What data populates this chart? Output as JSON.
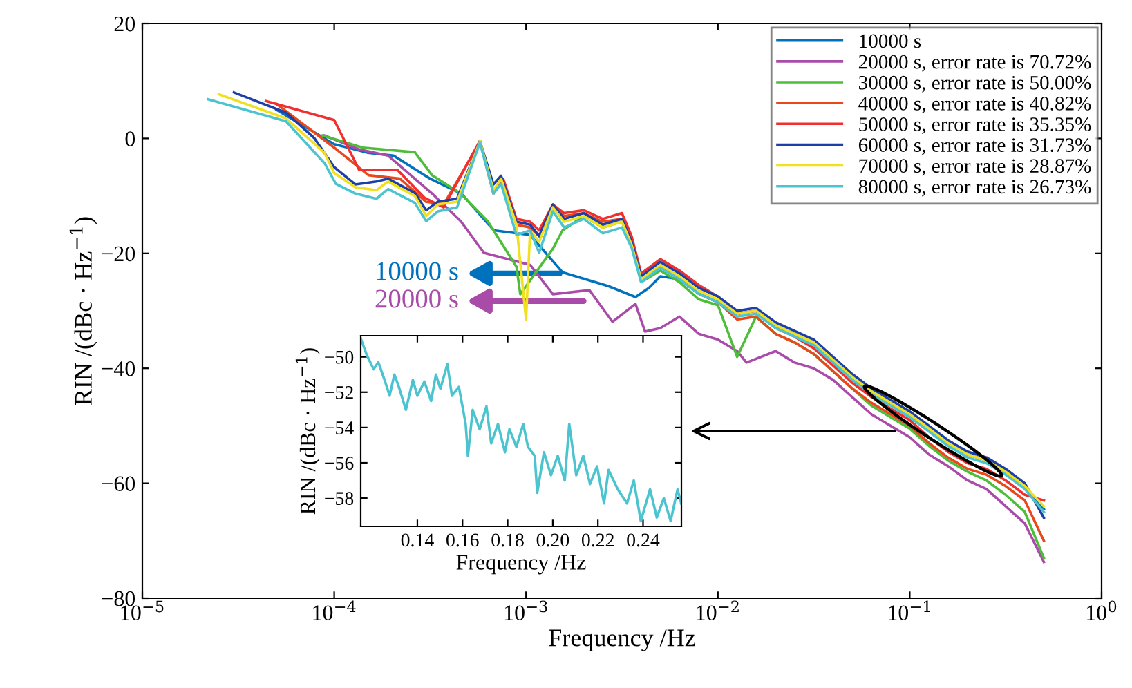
{
  "chart_data": [
    {
      "type": "line",
      "xlabel": "Frequency /Hz",
      "ylabel": "RIN /(dBc · Hz$^{−1}$)",
      "log": "x",
      "xlim": [
        1e-05,
        1
      ],
      "ylim": [
        -80,
        20
      ],
      "xticks": [
        {
          "value": 1e-05,
          "label": "10$^{−5}$"
        },
        {
          "value": 0.0001,
          "label": "10$^{−4}$"
        },
        {
          "value": 0.001,
          "label": "10$^{−3}$"
        },
        {
          "value": 0.01,
          "label": "10$^{−2}$"
        },
        {
          "value": 0.1,
          "label": "10$^{−1}$"
        },
        {
          "value": 1,
          "label": "10$^{0}$"
        }
      ],
      "yticks": [
        -80,
        -60,
        -40,
        -20,
        0,
        20
      ],
      "legend": "top right",
      "annotations": [
        "10000 s",
        "20000 s"
      ],
      "series": [
        {
          "name": "10000 s",
          "color": "#0072bd",
          "x": [
            5e-05,
            0.0001,
            0.00015,
            0.000204,
            0.000316,
            0.00046,
            0.00068,
            0.00105,
            0.00155,
            0.00269,
            0.00372,
            0.00437,
            0.00501,
            0.00631,
            0.00794,
            0.01,
            0.0126,
            0.0158,
            0.02,
            0.0251,
            0.0316,
            0.0398,
            0.0501,
            0.0631,
            0.0794,
            0.1,
            0.126,
            0.158,
            0.2,
            0.251,
            0.316,
            0.398,
            0.5
          ],
          "values": [
            5,
            -1,
            -2.5,
            -3,
            -7,
            -9.6,
            -16,
            -16.8,
            -23.3,
            -25.7,
            -27.6,
            -26,
            -24,
            -24.5,
            -27,
            -28.5,
            -30.5,
            -30,
            -32.5,
            -34,
            -35.5,
            -38.5,
            -41.5,
            -44,
            -46,
            -48,
            -50.5,
            -53,
            -55,
            -56,
            -58,
            -60.5,
            -64.5
          ]
        },
        {
          "name": "20000 s, error rate is 70.72%",
          "color": "#a94ba8",
          "x": [
            8.9e-05,
            0.000135,
            0.000191,
            0.000324,
            0.000457,
            0.000603,
            0.00105,
            0.00138,
            0.00214,
            0.00282,
            0.00372,
            0.00417,
            0.00501,
            0.00631,
            0.00794,
            0.01,
            0.0126,
            0.0141,
            0.02,
            0.0251,
            0.0316,
            0.0398,
            0.0501,
            0.0631,
            0.0794,
            0.1,
            0.126,
            0.158,
            0.2,
            0.251,
            0.316,
            0.398,
            0.5
          ],
          "values": [
            0.5,
            -1.9,
            -3,
            -9.6,
            -14.4,
            -19.9,
            -22,
            -27.1,
            -26.4,
            -31.9,
            -28.8,
            -33.6,
            -33,
            -31,
            -34,
            -35,
            -37,
            -39,
            -37,
            -39,
            -40,
            -42,
            -45,
            -48,
            -50,
            -52,
            -55,
            -57,
            -59.5,
            -61,
            -64,
            -67,
            -73.7
          ]
        },
        {
          "name": "30000 s, error rate is 50.00%",
          "color": "#4dbd3a",
          "x": [
            8.7e-05,
            0.000141,
            0.000263,
            0.000324,
            0.000457,
            0.000631,
            0.000891,
            0.000933,
            0.00105,
            0.00138,
            0.00155,
            0.002,
            0.00251,
            0.00316,
            0.00355,
            0.00398,
            0.00501,
            0.00631,
            0.00794,
            0.01,
            0.0126,
            0.0158,
            0.02,
            0.0251,
            0.0316,
            0.0398,
            0.0501,
            0.0631,
            0.0794,
            0.1,
            0.126,
            0.158,
            0.2,
            0.251,
            0.316,
            0.398,
            0.5
          ],
          "values": [
            0.5,
            -1.6,
            -2.4,
            -6.4,
            -9.6,
            -14.4,
            -22.3,
            -27.1,
            -24.7,
            -19.2,
            -16,
            -13.5,
            -15.5,
            -14.5,
            -18.5,
            -25,
            -23,
            -25,
            -28,
            -29,
            -38,
            -31,
            -34,
            -35.5,
            -37.5,
            -40.5,
            -43.5,
            -46.5,
            -48.5,
            -50.5,
            -53.5,
            -56,
            -58,
            -59.5,
            -62,
            -65,
            -73
          ]
        },
        {
          "name": "40000 s, error rate is 40.82%",
          "color": "#e8481c",
          "x": [
            5e-05,
            0.0001,
            0.000151,
            0.00022,
            0.0003,
            0.000372,
            0.000575,
            0.000676,
            0.00076,
            0.000891,
            0.00105,
            0.00117,
            0.00138,
            0.00158,
            0.002,
            0.00251,
            0.00316,
            0.00355,
            0.00398,
            0.00501,
            0.00631,
            0.00794,
            0.01,
            0.0126,
            0.0158,
            0.02,
            0.0251,
            0.0316,
            0.0398,
            0.0501,
            0.0631,
            0.0794,
            0.1,
            0.126,
            0.158,
            0.2,
            0.251,
            0.316,
            0.398,
            0.5
          ],
          "values": [
            6,
            -1.6,
            -6.4,
            -7,
            -11,
            -11.5,
            -0.6,
            -9,
            -7.5,
            -15,
            -15.5,
            -17,
            -12,
            -13.5,
            -13,
            -14.5,
            -14,
            -18,
            -24.5,
            -22,
            -24,
            -27,
            -28.5,
            -31.5,
            -31,
            -34,
            -35.5,
            -37.5,
            -40.5,
            -43.5,
            -46,
            -48,
            -50,
            -53,
            -55.5,
            -57.5,
            -58.5,
            -60.5,
            -63,
            -70
          ]
        },
        {
          "name": "50000 s, error rate is 35.35%",
          "color": "#f03030",
          "x": [
            4.4e-05,
            0.0001,
            0.000135,
            0.000214,
            0.000295,
            0.000372,
            0.000575,
            0.000676,
            0.00076,
            0.000891,
            0.00105,
            0.00117,
            0.00138,
            0.00158,
            0.002,
            0.00251,
            0.00316,
            0.00355,
            0.00398,
            0.00501,
            0.00631,
            0.00794,
            0.01,
            0.0126,
            0.0158,
            0.02,
            0.0251,
            0.0316,
            0.0398,
            0.0501,
            0.0631,
            0.0794,
            0.1,
            0.126,
            0.158,
            0.2,
            0.251,
            0.316,
            0.398,
            0.5
          ],
          "values": [
            6.5,
            3.2,
            -5.5,
            -5.5,
            -10.3,
            -12,
            -0.4,
            -9.6,
            -7,
            -14,
            -14.5,
            -16,
            -11.5,
            -13,
            -12.5,
            -14,
            -13,
            -17,
            -23.5,
            -21,
            -23,
            -25.5,
            -27.5,
            -30.5,
            -30,
            -33,
            -34.5,
            -36.5,
            -39.5,
            -42.5,
            -45,
            -47,
            -49,
            -52,
            -54.5,
            -56.5,
            -57.5,
            -59.5,
            -62,
            -63
          ]
        },
        {
          "name": "60000 s, error rate is 31.73%",
          "color": "#1d3fa8",
          "x": [
            3e-05,
            5.6e-05,
            7.9e-05,
            0.0001,
            0.000129,
            0.000166,
            0.000191,
            0.000263,
            0.000302,
            0.000347,
            0.000437,
            0.000575,
            0.000676,
            0.000741,
            0.000891,
            0.00105,
            0.00117,
            0.00138,
            0.00158,
            0.002,
            0.00251,
            0.00316,
            0.00355,
            0.00398,
            0.00501,
            0.00631,
            0.00794,
            0.01,
            0.0126,
            0.0158,
            0.02,
            0.0251,
            0.0316,
            0.0398,
            0.0501,
            0.0631,
            0.0794,
            0.1,
            0.126,
            0.158,
            0.2,
            0.251,
            0.316,
            0.398,
            0.5
          ],
          "values": [
            8,
            4.5,
            0,
            -5,
            -8,
            -7.5,
            -7,
            -9.5,
            -12.5,
            -11,
            -10.5,
            -0.5,
            -8,
            -6.5,
            -14.5,
            -15,
            -17,
            -11.5,
            -14,
            -13,
            -15,
            -14,
            -18,
            -24,
            -21.5,
            -23.5,
            -26,
            -27.5,
            -30,
            -29.5,
            -32,
            -33.5,
            -35,
            -38,
            -41,
            -43.5,
            -45.5,
            -47.5,
            -50,
            -52.5,
            -54.5,
            -55.5,
            -57.5,
            -60,
            -66
          ]
        },
        {
          "name": "70000 s, error rate is 28.87%",
          "color": "#f0e020",
          "x": [
            2.5e-05,
            5.6e-05,
            8.9e-05,
            0.0001,
            0.000129,
            0.000166,
            0.000191,
            0.000263,
            0.000302,
            0.000347,
            0.000437,
            0.000575,
            0.000676,
            0.000741,
            0.000891,
            0.001,
            0.00105,
            0.00117,
            0.00138,
            0.00158,
            0.002,
            0.00251,
            0.00316,
            0.00355,
            0.00398,
            0.00501,
            0.00631,
            0.00794,
            0.01,
            0.0126,
            0.0158,
            0.02,
            0.0251,
            0.0316,
            0.0398,
            0.0501,
            0.0631,
            0.0794,
            0.1,
            0.126,
            0.158,
            0.2,
            0.251,
            0.316,
            0.398,
            0.5
          ],
          "values": [
            7.7,
            3.5,
            -2.5,
            -6,
            -8.5,
            -9,
            -7.5,
            -10,
            -13.5,
            -11.5,
            -11,
            -0.5,
            -9,
            -7,
            -15,
            -31.5,
            -16,
            -18,
            -12,
            -14.5,
            -13.5,
            -15.5,
            -14.5,
            -18.5,
            -24.5,
            -22,
            -24,
            -26.5,
            -28,
            -30.5,
            -30,
            -32.5,
            -34,
            -35.5,
            -38.5,
            -41.5,
            -44,
            -46,
            -48,
            -50.5,
            -53,
            -55,
            -56,
            -58,
            -60.5,
            -64
          ]
        },
        {
          "name": "80000 s, error rate is 26.73%",
          "color": "#4cc4d0",
          "x": [
            2.2e-05,
            5.6e-05,
            8.9e-05,
            0.000102,
            0.000129,
            0.000166,
            0.000191,
            0.000263,
            0.000302,
            0.000347,
            0.000437,
            0.000575,
            0.000676,
            0.000741,
            0.000891,
            0.00105,
            0.00117,
            0.00138,
            0.00158,
            0.002,
            0.00251,
            0.00316,
            0.00355,
            0.00398,
            0.00501,
            0.00631,
            0.00794,
            0.01,
            0.0126,
            0.0158,
            0.02,
            0.0251,
            0.0316,
            0.0398,
            0.0501,
            0.0631,
            0.0794,
            0.1,
            0.126,
            0.158,
            0.2,
            0.251,
            0.316,
            0.398,
            0.5
          ],
          "values": [
            6.8,
            3,
            -4.3,
            -7.9,
            -9.6,
            -10.5,
            -8.8,
            -11.2,
            -14.4,
            -12.7,
            -12,
            -0.7,
            -9.6,
            -7.9,
            -16.8,
            -16,
            -19.9,
            -12.7,
            -15.5,
            -14,
            -16.5,
            -15.5,
            -19,
            -25,
            -22.5,
            -24.5,
            -27,
            -28.5,
            -31,
            -30.5,
            -33,
            -34.5,
            -36,
            -39,
            -42,
            -44.5,
            -46.5,
            -48.5,
            -51,
            -53.5,
            -55.5,
            -56.5,
            -58.5,
            -61,
            -65
          ]
        }
      ]
    },
    {
      "type": "line",
      "xlabel": "Frequency /Hz",
      "ylabel": "RIN /(dBc · Hz$^{−1}$)",
      "xlim": [
        0.1149,
        0.257
      ],
      "ylim": [
        -59.6,
        -48.8
      ],
      "xticks": [
        0.14,
        0.16,
        0.18,
        {
          "value": 0.2,
          "label": "0.20"
        },
        0.22,
        0.24
      ],
      "yticks": [
        -58,
        -56,
        -54,
        -52,
        -50
      ],
      "series": [
        {
          "color": "#4cc4d0",
          "x": [
            0.1149,
            0.1176,
            0.1206,
            0.1227,
            0.1257,
            0.1277,
            0.1298,
            0.1318,
            0.1349,
            0.138,
            0.14,
            0.1431,
            0.1461,
            0.1482,
            0.1502,
            0.1533,
            0.1553,
            0.1584,
            0.1614,
            0.1624,
            0.1645,
            0.1676,
            0.1706,
            0.1727,
            0.1757,
            0.1788,
            0.1808,
            0.1839,
            0.1869,
            0.189,
            0.192,
            0.1931,
            0.1961,
            0.1992,
            0.2022,
            0.2053,
            0.2073,
            0.2104,
            0.2135,
            0.2165,
            0.2196,
            0.2227,
            0.2247,
            0.2288,
            0.2329,
            0.2359,
            0.239,
            0.2431,
            0.2461,
            0.2492,
            0.2522,
            0.2553,
            0.2569
          ],
          "values": [
            -48.95,
            -49.9,
            -50.7,
            -50.3,
            -51.4,
            -52.2,
            -51,
            -51.7,
            -53,
            -51.3,
            -52.2,
            -51.4,
            -52.5,
            -51,
            -51.8,
            -50.4,
            -52.2,
            -51.7,
            -53.8,
            -55.6,
            -53,
            -54.1,
            -52.8,
            -54.9,
            -53.8,
            -55.4,
            -54.1,
            -55.1,
            -53.8,
            -55.1,
            -55.6,
            -57.7,
            -55.4,
            -56.7,
            -55.6,
            -57,
            -53.8,
            -56.7,
            -55.6,
            -57.2,
            -56.2,
            -58.3,
            -56.4,
            -57.5,
            -58.3,
            -57,
            -59.3,
            -57.5,
            -59.1,
            -58,
            -59.3,
            -57.5,
            -58.3
          ]
        }
      ]
    }
  ]
}
